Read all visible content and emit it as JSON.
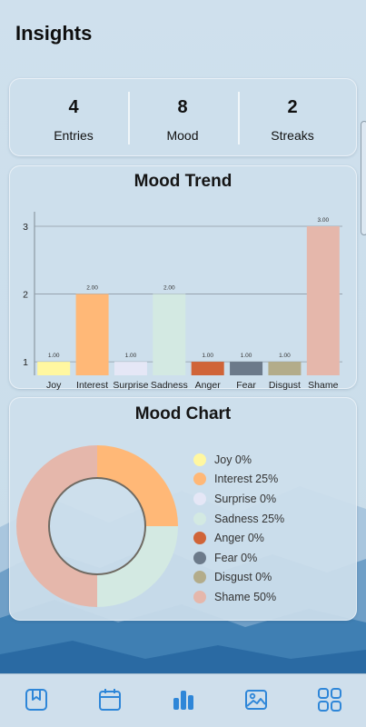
{
  "header": {
    "title": "Insights"
  },
  "stats": [
    {
      "value": "4",
      "label": "Entries"
    },
    {
      "value": "8",
      "label": "Mood"
    },
    {
      "value": "2",
      "label": "Streaks"
    }
  ],
  "trend": {
    "title": "Mood Trend"
  },
  "pie": {
    "title": "Mood Chart"
  },
  "colors": {
    "accent": "#2e86d8",
    "card_bg": "#cddeeb"
  },
  "nav": {
    "items": [
      {
        "icon": "bookmark-icon",
        "active": false
      },
      {
        "icon": "calendar-icon",
        "active": false
      },
      {
        "icon": "bar-chart-icon",
        "active": true
      },
      {
        "icon": "image-icon",
        "active": false
      },
      {
        "icon": "grid-icon",
        "active": false
      }
    ]
  },
  "chart_data": [
    {
      "type": "bar",
      "categories": [
        "Joy",
        "Interest",
        "Surprise",
        "Sadness",
        "Anger",
        "Fear",
        "Disgust",
        "Shame"
      ],
      "values": [
        1,
        2,
        1,
        2,
        1,
        1,
        1,
        3
      ],
      "value_labels": [
        "1.00",
        "2.00",
        "1.00",
        "2.00",
        "1.00",
        "1.00",
        "1.00",
        "3.00"
      ],
      "colors": [
        "#fff7a0",
        "#ffb877",
        "#e5e7f6",
        "#d3e9e2",
        "#d06438",
        "#6c7a8a",
        "#b3ac8a",
        "#e5b7ab"
      ],
      "yticks": [
        "1",
        "2",
        "3"
      ],
      "ylim": [
        0.8,
        3
      ],
      "grid": true,
      "title": "Mood Trend"
    },
    {
      "type": "pie",
      "title": "Mood Chart",
      "donut": true,
      "labels": [
        "Joy",
        "Interest",
        "Surprise",
        "Sadness",
        "Anger",
        "Fear",
        "Disgust",
        "Shame"
      ],
      "values": [
        0,
        25,
        0,
        25,
        0,
        0,
        0,
        50
      ],
      "legend_labels": [
        "Joy 0%",
        "Interest 25%",
        "Surprise 0%",
        "Sadness 25%",
        "Anger 0%",
        "Fear 0%",
        "Disgust 0%",
        "Shame 50%"
      ],
      "colors": [
        "#fff7a0",
        "#ffb877",
        "#e5e7f6",
        "#d3e9e2",
        "#d06438",
        "#6c7a8a",
        "#b3ac8a",
        "#e5b7ab"
      ],
      "legend": "right"
    }
  ]
}
